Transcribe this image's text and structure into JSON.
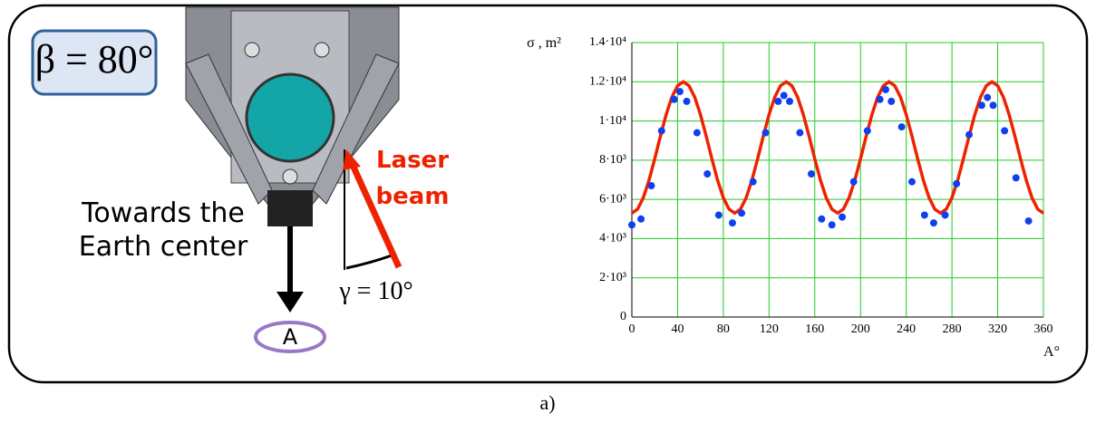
{
  "figure": {
    "beta": "β = 80°",
    "towards": [
      "Towards the",
      "Earth center"
    ],
    "laser": [
      "Laser",
      "beam"
    ],
    "gamma": "γ = 10°",
    "rotation": "A",
    "caption": "a)"
  },
  "chart_data": {
    "type": "scatter",
    "y_label": "σ , m²",
    "x_label": "A°",
    "xlim": [
      0,
      360
    ],
    "xticks": [
      0,
      40,
      80,
      120,
      160,
      200,
      240,
      280,
      320,
      360
    ],
    "ylim": [
      0,
      14000
    ],
    "yticks": [
      0,
      {
        "value": 2000,
        "label": "2·10³"
      },
      {
        "value": 4000,
        "label": "4·10³"
      },
      {
        "value": 6000,
        "label": "6·10³"
      },
      {
        "value": 8000,
        "label": "8·10³"
      },
      {
        "value": 10000,
        "label": "1·10⁴"
      },
      {
        "value": 12000,
        "label": "1.2·10⁴"
      },
      {
        "value": 14000,
        "label": "1.4·10⁴"
      }
    ],
    "grid": true,
    "grid_color": "#22cc22",
    "series": [
      {
        "type": "line",
        "color": "#ee2200",
        "x": [
          0,
          5,
          10,
          15,
          20,
          25,
          30,
          35,
          40,
          45,
          50,
          55,
          60,
          65,
          70,
          75,
          80,
          85,
          90,
          95,
          100,
          105,
          110,
          115,
          120,
          125,
          130,
          135,
          140,
          145,
          150,
          155,
          160,
          165,
          170,
          175,
          180,
          185,
          190,
          195,
          200,
          205,
          210,
          215,
          220,
          225,
          230,
          235,
          240,
          245,
          250,
          255,
          260,
          265,
          270,
          275,
          280,
          285,
          290,
          295,
          300,
          305,
          310,
          315,
          320,
          325,
          330,
          335,
          340,
          345,
          350,
          355,
          360
        ],
        "values": [
          5300,
          5502,
          6084,
          6975,
          8068,
          9232,
          10325,
          11216,
          11798,
          12000,
          11798,
          11216,
          10325,
          9232,
          8068,
          6975,
          6084,
          5502,
          5300,
          5502,
          6084,
          6975,
          8068,
          9232,
          10325,
          11216,
          11798,
          12000,
          11798,
          11216,
          10325,
          9232,
          8068,
          6975,
          6084,
          5502,
          5300,
          5502,
          6084,
          6975,
          8068,
          9232,
          10325,
          11216,
          11798,
          12000,
          11798,
          11216,
          10325,
          9232,
          8068,
          6975,
          6084,
          5502,
          5300,
          5502,
          6084,
          6975,
          8068,
          9232,
          10325,
          11216,
          11798,
          12000,
          11798,
          11216,
          10325,
          9232,
          8068,
          6975,
          6084,
          5502,
          5300
        ]
      },
      {
        "type": "scatter",
        "color": "#1040ee",
        "x": [
          0,
          8,
          17,
          26,
          37,
          42,
          48,
          57,
          66,
          76,
          88,
          96,
          106,
          117,
          128,
          133,
          138,
          147,
          157,
          166,
          175,
          184,
          194,
          206,
          217,
          222,
          227,
          236,
          245,
          256,
          264,
          274,
          284,
          295,
          306,
          311,
          316,
          326,
          336,
          347
        ],
        "values": [
          4700,
          5000,
          6700,
          9500,
          11100,
          11500,
          11000,
          9400,
          7300,
          5200,
          4800,
          5300,
          6900,
          9400,
          11000,
          11300,
          11000,
          9400,
          7300,
          5000,
          4700,
          5100,
          6900,
          9500,
          11100,
          11600,
          11000,
          9700,
          6900,
          5200,
          4800,
          5200,
          6800,
          9300,
          10800,
          11200,
          10800,
          9500,
          7100,
          4900
        ]
      }
    ]
  }
}
